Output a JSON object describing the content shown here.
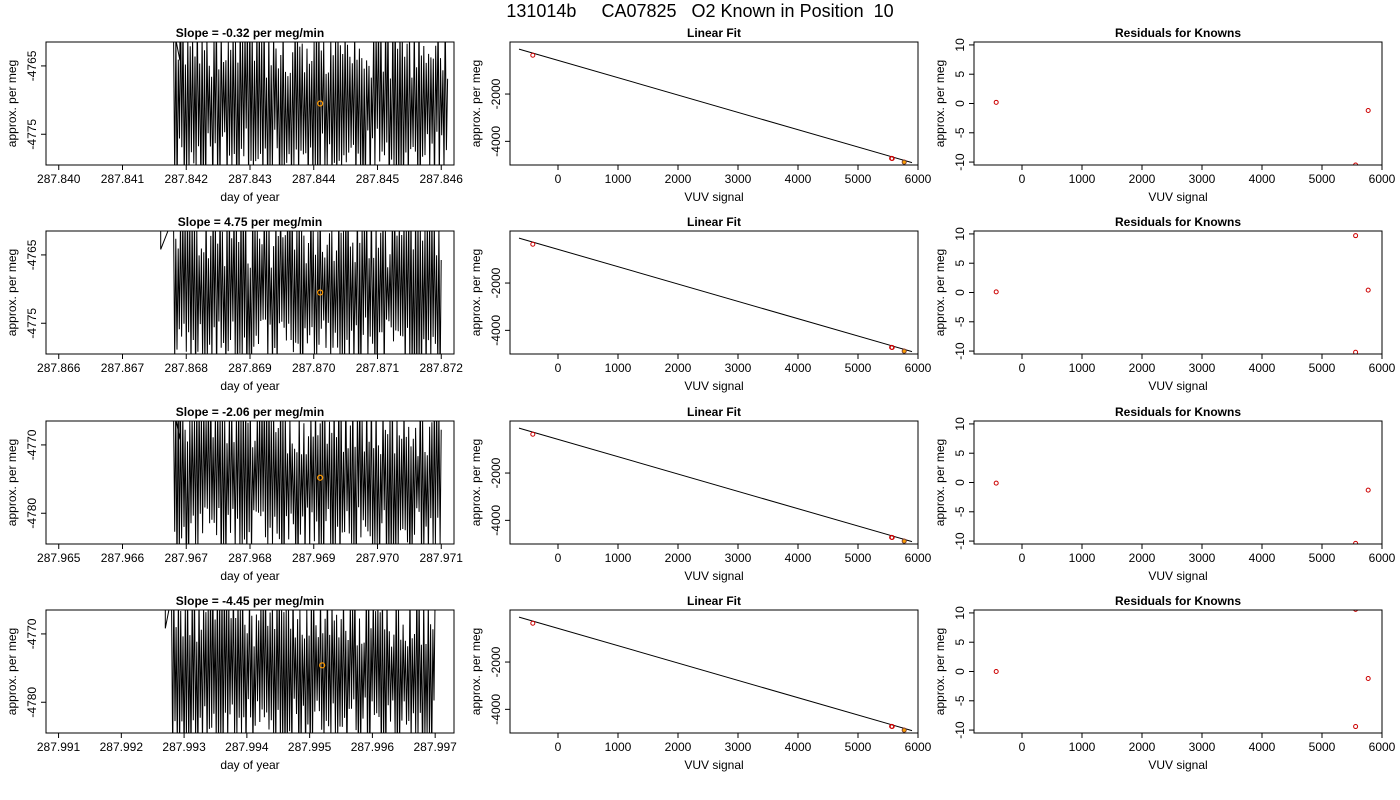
{
  "figure_title": "131014b     CA07825   O2 Known in Position  10",
  "chart_data": [
    {
      "type": "line",
      "panel": "time-series",
      "row": 0,
      "title": "Slope =  -0.32  per meg/min",
      "xlabel": "day of year",
      "ylabel": "approx. per meg",
      "xlim": [
        287.8398,
        287.8462
      ],
      "ylim": [
        -4779.5,
        -4761.5
      ],
      "xticks": [
        "287.840",
        "287.841",
        "287.842",
        "287.843",
        "287.844",
        "287.845",
        "287.846"
      ],
      "yticks": [
        "-4765",
        "-4775"
      ],
      "signal_start": 287.8418,
      "signal_end": 287.8461,
      "signal_pre": 287.8419,
      "marker": {
        "x": 287.8441,
        "y": -4770.5
      },
      "line_color": "#000000",
      "marker_color": "#ff9900",
      "seed": 11
    },
    {
      "type": "scatter",
      "panel": "linear-fit",
      "row": 0,
      "title": "Linear Fit",
      "xlabel": "VUV signal",
      "ylabel": "approx. per meg",
      "xlim": [
        -800,
        6000
      ],
      "ylim": [
        -5000,
        200
      ],
      "xticks": [
        "0",
        "1000",
        "2000",
        "3000",
        "4000",
        "5000",
        "6000"
      ],
      "yticks": [
        "-2000",
        "-4000"
      ],
      "fit": {
        "x1": -650,
        "y1": -100,
        "x2": 5900,
        "y2": -4900
      },
      "points": [
        {
          "x": -420,
          "y": -360
        },
        {
          "x": 5560,
          "y": -4720
        },
        {
          "x": 5570,
          "y": -4725
        },
        {
          "x": 5770,
          "y": -4880
        }
      ],
      "highlight": {
        "x": 5770,
        "y": -4880
      },
      "point_color": "#cc0000",
      "highlight_color": "#ff9900"
    },
    {
      "type": "scatter",
      "panel": "residuals",
      "row": 0,
      "title": "Residuals for Knowns",
      "xlabel": "VUV signal",
      "ylabel": "approx. per meg",
      "xlim": [
        -800,
        6000
      ],
      "ylim": [
        -10.5,
        10.5
      ],
      "xticks": [
        "0",
        "1000",
        "2000",
        "3000",
        "4000",
        "5000",
        "6000"
      ],
      "yticks": [
        "-10",
        "-5",
        "0",
        "5",
        "10"
      ],
      "points": [
        {
          "x": -430,
          "y": 0.2
        },
        {
          "x": 5770,
          "y": -1.2
        },
        {
          "x": 5560,
          "y": -10.5
        }
      ],
      "point_color": "#cc0000"
    },
    {
      "type": "line",
      "panel": "time-series",
      "row": 1,
      "title": "Slope =  4.75  per meg/min",
      "xlabel": "day of year",
      "ylabel": "approx. per meg",
      "xlim": [
        287.8658,
        287.8722
      ],
      "ylim": [
        -4779.5,
        -4761.5
      ],
      "xticks": [
        "287.866",
        "287.867",
        "287.868",
        "287.869",
        "287.870",
        "287.871",
        "287.872"
      ],
      "yticks": [
        "-4765",
        "-4775"
      ],
      "signal_start": 287.8678,
      "signal_end": 287.872,
      "signal_pre": 287.8676,
      "marker": {
        "x": 287.8701,
        "y": -4770.5
      },
      "line_color": "#000000",
      "marker_color": "#ff9900",
      "seed": 23
    },
    {
      "type": "scatter",
      "panel": "linear-fit",
      "row": 1,
      "title": "Linear Fit",
      "xlabel": "VUV signal",
      "ylabel": "approx. per meg",
      "xlim": [
        -800,
        6000
      ],
      "ylim": [
        -5000,
        200
      ],
      "xticks": [
        "0",
        "1000",
        "2000",
        "3000",
        "4000",
        "5000",
        "6000"
      ],
      "yticks": [
        "-2000",
        "-4000"
      ],
      "fit": {
        "x1": -650,
        "y1": -100,
        "x2": 5900,
        "y2": -4900
      },
      "points": [
        {
          "x": -420,
          "y": -360
        },
        {
          "x": 5560,
          "y": -4720
        },
        {
          "x": 5570,
          "y": -4725
        },
        {
          "x": 5770,
          "y": -4880
        }
      ],
      "highlight": {
        "x": 5770,
        "y": -4880
      },
      "point_color": "#cc0000",
      "highlight_color": "#ff9900"
    },
    {
      "type": "scatter",
      "panel": "residuals",
      "row": 1,
      "title": "Residuals for Knowns",
      "xlabel": "VUV signal",
      "ylabel": "approx. per meg",
      "xlim": [
        -800,
        6000
      ],
      "ylim": [
        -10.5,
        10.5
      ],
      "xticks": [
        "0",
        "1000",
        "2000",
        "3000",
        "4000",
        "5000",
        "6000"
      ],
      "yticks": [
        "-10",
        "-5",
        "0",
        "5",
        "10"
      ],
      "points": [
        {
          "x": -430,
          "y": 0.1
        },
        {
          "x": 5560,
          "y": 9.7
        },
        {
          "x": 5770,
          "y": 0.4
        },
        {
          "x": 5560,
          "y": -10.2
        }
      ],
      "point_color": "#cc0000"
    },
    {
      "type": "line",
      "panel": "time-series",
      "row": 2,
      "title": "Slope =  -2.06  per meg/min",
      "xlabel": "day of year",
      "ylabel": "approx. per meg",
      "xlim": [
        287.9648,
        287.9712
      ],
      "ylim": [
        -4784.5,
        -4766.5
      ],
      "xticks": [
        "287.965",
        "287.966",
        "287.967",
        "287.968",
        "287.969",
        "287.970",
        "287.971"
      ],
      "yticks": [
        "-4770",
        "-4780"
      ],
      "signal_start": 287.9668,
      "signal_end": 287.971,
      "signal_pre": 287.9669,
      "marker": {
        "x": 287.9691,
        "y": -4774.8
      },
      "line_color": "#000000",
      "marker_color": "#ff9900",
      "seed": 37
    },
    {
      "type": "scatter",
      "panel": "linear-fit",
      "row": 2,
      "title": "Linear Fit",
      "xlabel": "VUV signal",
      "ylabel": "approx. per meg",
      "xlim": [
        -800,
        6000
      ],
      "ylim": [
        -5000,
        200
      ],
      "xticks": [
        "0",
        "1000",
        "2000",
        "3000",
        "4000",
        "5000",
        "6000"
      ],
      "yticks": [
        "-2000",
        "-4000"
      ],
      "fit": {
        "x1": -650,
        "y1": -100,
        "x2": 5900,
        "y2": -4900
      },
      "points": [
        {
          "x": -420,
          "y": -360
        },
        {
          "x": 5560,
          "y": -4720
        },
        {
          "x": 5570,
          "y": -4725
        },
        {
          "x": 5770,
          "y": -4880
        }
      ],
      "highlight": {
        "x": 5770,
        "y": -4880
      },
      "point_color": "#cc0000",
      "highlight_color": "#ff9900"
    },
    {
      "type": "scatter",
      "panel": "residuals",
      "row": 2,
      "title": "Residuals for Knowns",
      "xlabel": "VUV signal",
      "ylabel": "approx. per meg",
      "xlim": [
        -800,
        6000
      ],
      "ylim": [
        -10.5,
        10.5
      ],
      "xticks": [
        "0",
        "1000",
        "2000",
        "3000",
        "4000",
        "5000",
        "6000"
      ],
      "yticks": [
        "-10",
        "-5",
        "0",
        "5",
        "10"
      ],
      "points": [
        {
          "x": -430,
          "y": -0.1
        },
        {
          "x": 5770,
          "y": -1.3
        },
        {
          "x": 5560,
          "y": -10.4
        }
      ],
      "point_color": "#cc0000"
    },
    {
      "type": "line",
      "panel": "time-series",
      "row": 3,
      "title": "Slope =  -4.45  per meg/min",
      "xlabel": "day of year",
      "ylabel": "approx. per meg",
      "xlim": [
        287.9908,
        287.9973
      ],
      "ylim": [
        -4784.5,
        -4766.5
      ],
      "xticks": [
        "287.991",
        "287.992",
        "287.993",
        "287.994",
        "287.995",
        "287.996",
        "287.997"
      ],
      "yticks": [
        "-4770",
        "-4780"
      ],
      "signal_start": 287.9928,
      "signal_end": 287.997,
      "signal_pre": 287.9927,
      "marker": {
        "x": 287.9952,
        "y": -4774.6
      },
      "line_color": "#000000",
      "marker_color": "#ff9900",
      "seed": 53
    },
    {
      "type": "scatter",
      "panel": "linear-fit",
      "row": 3,
      "title": "Linear Fit",
      "xlabel": "VUV signal",
      "ylabel": "approx. per meg",
      "xlim": [
        -800,
        6000
      ],
      "ylim": [
        -5000,
        200
      ],
      "xticks": [
        "0",
        "1000",
        "2000",
        "3000",
        "4000",
        "5000",
        "6000"
      ],
      "yticks": [
        "-2000",
        "-4000"
      ],
      "fit": {
        "x1": -650,
        "y1": -100,
        "x2": 5900,
        "y2": -4900
      },
      "points": [
        {
          "x": -420,
          "y": -360
        },
        {
          "x": 5560,
          "y": -4720
        },
        {
          "x": 5570,
          "y": -4725
        },
        {
          "x": 5770,
          "y": -4880
        }
      ],
      "highlight": {
        "x": 5770,
        "y": -4880
      },
      "point_color": "#cc0000",
      "highlight_color": "#ff9900"
    },
    {
      "type": "scatter",
      "panel": "residuals",
      "row": 3,
      "title": "Residuals for Knowns",
      "xlabel": "VUV signal",
      "ylabel": "approx. per meg",
      "xlim": [
        -800,
        6000
      ],
      "ylim": [
        -10.5,
        10.5
      ],
      "xticks": [
        "0",
        "1000",
        "2000",
        "3000",
        "4000",
        "5000",
        "6000"
      ],
      "yticks": [
        "-10",
        "-5",
        "0",
        "5",
        "10"
      ],
      "points": [
        {
          "x": -430,
          "y": 0.0
        },
        {
          "x": 5560,
          "y": 10.6
        },
        {
          "x": 5770,
          "y": -1.2
        },
        {
          "x": 5560,
          "y": -9.4
        }
      ],
      "point_color": "#cc0000"
    }
  ]
}
